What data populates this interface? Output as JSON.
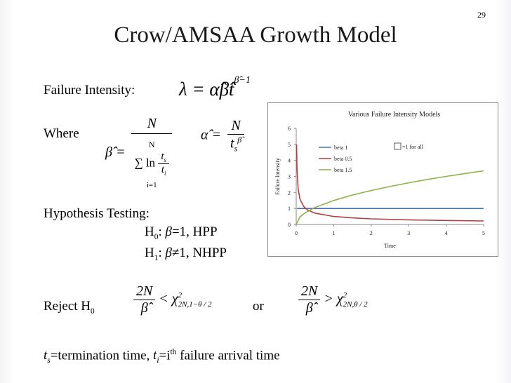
{
  "slide": {
    "number": "29",
    "title": "Crow/AMSAA Growth Model",
    "failure_intensity_label": "Failure Intensity:",
    "where_label": "Where",
    "hypothesis_label": "Hypothesis Testing:",
    "h0_text": "=1, HPP",
    "h1_text": "1, NHPP",
    "h1_symbol": "≠",
    "reject_label": "Reject H",
    "or_label": "or",
    "footer_ts": "=termination time, ",
    "footer_ti": "=i",
    "footer_th": "th",
    "footer_rest": " failure arrival time"
  },
  "chart_data": {
    "type": "line",
    "title": "Various Failure Intensity Models",
    "xlabel": "Time",
    "ylabel": "Failure Intensity",
    "xlim": [
      0,
      5
    ],
    "ylim": [
      0,
      6
    ],
    "xticks": [
      "0",
      "1",
      "2",
      "3",
      "4",
      "5"
    ],
    "yticks": [
      "0",
      "1",
      "2",
      "3",
      "4",
      "5",
      "6"
    ],
    "legend_position": "top-left",
    "annotation": "=1 for all",
    "series": [
      {
        "name": "beta 1",
        "color": "#4a74b4",
        "x": [
          0.02,
          5
        ],
        "y": [
          1,
          1
        ]
      },
      {
        "name": "beta 0.5",
        "color": "#b0413e",
        "x": [
          0.01,
          0.02,
          0.05,
          0.1,
          0.2,
          0.3,
          0.5,
          1,
          1.5,
          2,
          3,
          4,
          5
        ],
        "y": [
          5.0,
          3.54,
          2.24,
          1.58,
          1.12,
          0.91,
          0.71,
          0.5,
          0.41,
          0.35,
          0.29,
          0.25,
          0.22
        ]
      },
      {
        "name": "beta 1.5",
        "color": "#8db04a",
        "x": [
          0,
          0.1,
          0.25,
          0.5,
          1,
          1.5,
          2,
          2.5,
          3,
          3.5,
          4,
          4.5,
          5
        ],
        "y": [
          0,
          0.47,
          0.75,
          1.06,
          1.5,
          1.84,
          2.12,
          2.37,
          2.6,
          2.81,
          3.0,
          3.18,
          3.35
        ]
      }
    ]
  }
}
